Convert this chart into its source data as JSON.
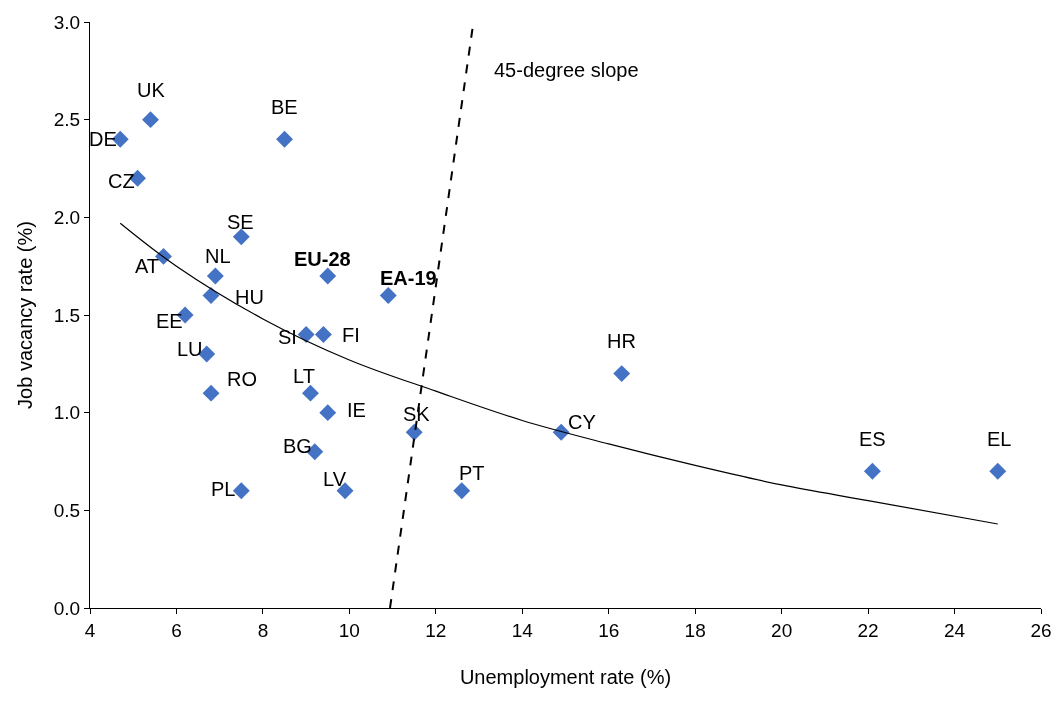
{
  "chart_data": {
    "type": "scatter",
    "xlabel": "Unemployment rate (%)",
    "ylabel": "Job vacancy rate (%)",
    "xlim": [
      4,
      26
    ],
    "xticks": [
      4,
      6,
      8,
      10,
      12,
      14,
      16,
      18,
      20,
      22,
      24,
      26
    ],
    "ylim": [
      0,
      3
    ],
    "yticks": [
      {
        "value": 0,
        "label": "0.0"
      },
      {
        "value": 0.5,
        "label": "0.5"
      },
      {
        "value": 1,
        "label": "1.0"
      },
      {
        "value": 1.5,
        "label": "1.5"
      },
      {
        "value": 2,
        "label": "2.0"
      },
      {
        "value": 2.5,
        "label": "2.5"
      },
      {
        "value": 3,
        "label": "3.0"
      }
    ],
    "series": [
      {
        "marker": "diamond",
        "color": "#4472c4",
        "x": [
          5.4,
          4.7,
          5.1,
          8.5,
          7.5,
          5.7,
          6.9,
          6.8,
          6.2,
          6.7,
          6.8,
          7.5,
          9.5,
          10.9,
          9.0,
          9.4,
          9.1,
          9.5,
          9.2,
          9.9,
          11.5,
          12.6,
          14.9,
          16.3,
          22.1,
          25.0
        ],
        "values": [
          2.5,
          2.4,
          2.2,
          2.4,
          1.9,
          1.8,
          1.7,
          1.6,
          1.5,
          1.3,
          1.1,
          0.6,
          1.7,
          1.6,
          1.4,
          1.4,
          1.1,
          1.0,
          0.8,
          0.6,
          0.9,
          0.6,
          0.9,
          1.2,
          0.7,
          0.7
        ]
      },
      {
        "type": "line",
        "color": "#000000",
        "line_style": "solid",
        "marker": "none",
        "x": [
          4.7,
          6,
          8,
          10,
          12,
          14,
          16,
          18,
          20,
          22,
          25
        ],
        "values": [
          1.97,
          1.75,
          1.48,
          1.27,
          1.11,
          0.96,
          0.84,
          0.73,
          0.63,
          0.55,
          0.43
        ]
      },
      {
        "type": "line",
        "color": "#000000",
        "line_style": "dashed",
        "marker": "none",
        "x": [
          10.94,
          12.87
        ],
        "values": [
          0,
          3
        ]
      }
    ],
    "annotations": [
      {
        "text": "UK",
        "x": 5.4,
        "y": 2.5
      },
      {
        "text": "DE",
        "x": 4.7,
        "y": 2.4
      },
      {
        "text": "CZ",
        "x": 5.1,
        "y": 2.2
      },
      {
        "text": "BE",
        "x": 8.5,
        "y": 2.4
      },
      {
        "text": "SE",
        "x": 7.5,
        "y": 1.9
      },
      {
        "text": "AT",
        "x": 5.7,
        "y": 1.8
      },
      {
        "text": "NL",
        "x": 6.9,
        "y": 1.7
      },
      {
        "text": "HU",
        "x": 6.8,
        "y": 1.6
      },
      {
        "text": "EE",
        "x": 6.2,
        "y": 1.5
      },
      {
        "text": "LU",
        "x": 6.7,
        "y": 1.3
      },
      {
        "text": "RO",
        "x": 6.8,
        "y": 1.1
      },
      {
        "text": "PL",
        "x": 7.5,
        "y": 0.6
      },
      {
        "text": "EU-28",
        "x": 9.5,
        "y": 1.7
      },
      {
        "text": "EA-19",
        "x": 10.9,
        "y": 1.6
      },
      {
        "text": "SI",
        "x": 9.0,
        "y": 1.4
      },
      {
        "text": "FI",
        "x": 9.4,
        "y": 1.4
      },
      {
        "text": "LT",
        "x": 9.1,
        "y": 1.1
      },
      {
        "text": "IE",
        "x": 9.5,
        "y": 1.0
      },
      {
        "text": "BG",
        "x": 9.2,
        "y": 0.8
      },
      {
        "text": "LV",
        "x": 9.9,
        "y": 0.6
      },
      {
        "text": "SK",
        "x": 11.5,
        "y": 0.9
      },
      {
        "text": "PT",
        "x": 12.6,
        "y": 0.6
      },
      {
        "text": "CY",
        "x": 14.9,
        "y": 0.9
      },
      {
        "text": "HR",
        "x": 16.3,
        "y": 1.2
      },
      {
        "text": "ES",
        "x": 22.1,
        "y": 0.7
      },
      {
        "text": "EL",
        "x": 25.0,
        "y": 0.7
      },
      "45-degree slope"
    ]
  }
}
